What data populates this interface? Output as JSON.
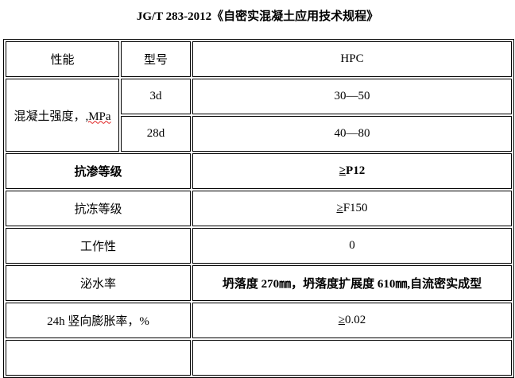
{
  "title": "JG/T 283-2012《自密实混凝土应用技术规程》",
  "header": {
    "property": "性能",
    "model": "型号",
    "type": "HPC"
  },
  "strength": {
    "label_prefix": "混凝土强度，",
    "label_unit": ",MPa",
    "rows": [
      {
        "age": "3d",
        "value": "30—50"
      },
      {
        "age": "28d",
        "value": "40—80"
      }
    ]
  },
  "rows": [
    {
      "label": "抗渗等级",
      "ge": "≥",
      "value": "P12"
    },
    {
      "label": "抗冻等级",
      "ge": "≥",
      "value": "F150"
    },
    {
      "label": "工作性",
      "value": "0"
    },
    {
      "label": "泌水率",
      "value": "坍落度 270㎜，坍落度扩展度 610㎜,自流密实成型"
    },
    {
      "label": "24h 竖向膨胀率，%",
      "ge": "≥",
      "value": "0.02"
    }
  ]
}
